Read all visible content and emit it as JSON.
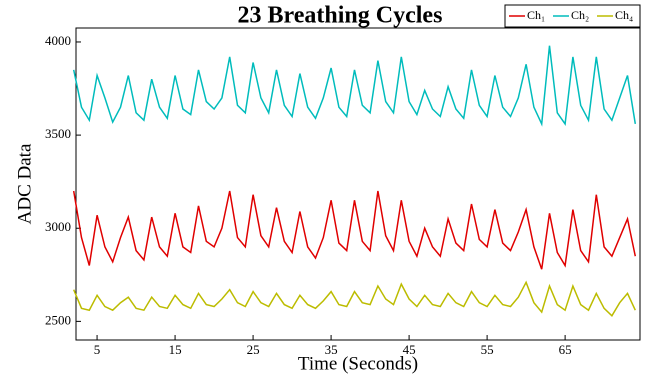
{
  "chart_data": {
    "type": "line",
    "title": "23 Breathing Cycles",
    "xlabel": "Time (Seconds)",
    "ylabel": "ADC Data",
    "x": [
      2,
      3,
      4,
      5,
      6,
      7,
      8,
      9,
      10,
      11,
      12,
      13,
      14,
      15,
      16,
      17,
      18,
      19,
      20,
      21,
      22,
      23,
      24,
      25,
      26,
      27,
      28,
      29,
      30,
      31,
      32,
      33,
      34,
      35,
      36,
      37,
      38,
      39,
      40,
      41,
      42,
      43,
      44,
      45,
      46,
      47,
      48,
      49,
      50,
      51,
      52,
      53,
      54,
      55,
      56,
      57,
      58,
      59,
      60,
      61,
      62,
      63,
      64,
      65,
      66,
      67,
      68,
      69,
      70,
      71,
      72,
      73,
      74
    ],
    "series": [
      {
        "name": "Ch₁",
        "color": "#e00000",
        "values": [
          3200,
          2950,
          2800,
          3070,
          2900,
          2820,
          2950,
          3060,
          2880,
          2830,
          3060,
          2900,
          2850,
          3080,
          2900,
          2870,
          3120,
          2930,
          2900,
          3000,
          3200,
          2950,
          2900,
          3180,
          2960,
          2900,
          3110,
          2930,
          2870,
          3090,
          2900,
          2840,
          2950,
          3150,
          2920,
          2880,
          3150,
          2930,
          2880,
          3200,
          2960,
          2880,
          3150,
          2930,
          2850,
          3000,
          2900,
          2850,
          3050,
          2920,
          2880,
          3130,
          2940,
          2900,
          3100,
          2920,
          2880,
          2980,
          3100,
          2900,
          2780,
          3080,
          2870,
          2800,
          3100,
          2880,
          2820,
          3180,
          2900,
          2850,
          2950,
          3050,
          2850
        ]
      },
      {
        "name": "Ch₂",
        "color": "#00bcbc",
        "values": [
          3850,
          3650,
          3580,
          3820,
          3700,
          3570,
          3650,
          3820,
          3620,
          3580,
          3800,
          3650,
          3590,
          3820,
          3640,
          3610,
          3850,
          3680,
          3640,
          3700,
          3920,
          3660,
          3620,
          3890,
          3700,
          3620,
          3850,
          3660,
          3600,
          3830,
          3650,
          3590,
          3700,
          3860,
          3650,
          3600,
          3850,
          3660,
          3620,
          3900,
          3680,
          3620,
          3920,
          3680,
          3610,
          3740,
          3640,
          3600,
          3760,
          3640,
          3590,
          3850,
          3660,
          3600,
          3820,
          3650,
          3600,
          3700,
          3880,
          3650,
          3560,
          3980,
          3620,
          3560,
          3920,
          3660,
          3580,
          3920,
          3640,
          3580,
          3700,
          3820,
          3560
        ]
      },
      {
        "name": "Ch₄",
        "color": "#bcbc00",
        "values": [
          2670,
          2570,
          2560,
          2640,
          2580,
          2560,
          2600,
          2630,
          2570,
          2560,
          2630,
          2580,
          2570,
          2640,
          2590,
          2570,
          2650,
          2590,
          2580,
          2620,
          2670,
          2600,
          2580,
          2660,
          2600,
          2580,
          2650,
          2590,
          2570,
          2640,
          2590,
          2570,
          2610,
          2660,
          2590,
          2580,
          2660,
          2600,
          2590,
          2690,
          2620,
          2590,
          2700,
          2620,
          2580,
          2640,
          2590,
          2580,
          2650,
          2600,
          2580,
          2660,
          2600,
          2580,
          2640,
          2590,
          2580,
          2630,
          2710,
          2600,
          2550,
          2690,
          2590,
          2560,
          2690,
          2590,
          2560,
          2650,
          2570,
          2530,
          2600,
          2650,
          2560
        ]
      }
    ],
    "xlim": [
      2.3,
      74.6
    ],
    "ylim": [
      2400,
      4075
    ],
    "xticks": [
      5,
      15,
      25,
      35,
      45,
      55,
      65
    ],
    "yticks": [
      2500,
      3000,
      3500,
      4000
    ]
  }
}
